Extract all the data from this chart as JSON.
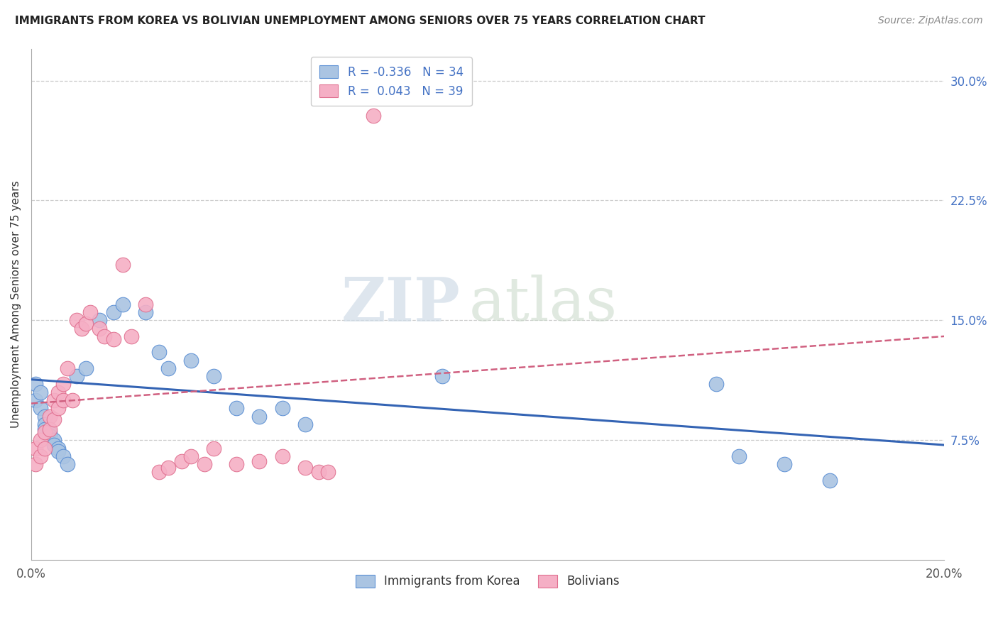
{
  "title": "IMMIGRANTS FROM KOREA VS BOLIVIAN UNEMPLOYMENT AMONG SENIORS OVER 75 YEARS CORRELATION CHART",
  "source": "Source: ZipAtlas.com",
  "ylabel": "Unemployment Among Seniors over 75 years",
  "watermark_zip": "ZIP",
  "watermark_atlas": "atlas",
  "xlim": [
    0.0,
    0.2
  ],
  "ylim": [
    0.0,
    0.32
  ],
  "xticks": [
    0.0,
    0.05,
    0.1,
    0.15,
    0.2
  ],
  "xtick_labels": [
    "0.0%",
    "",
    "",
    "",
    "20.0%"
  ],
  "yticks_right": [
    0.075,
    0.15,
    0.225,
    0.3
  ],
  "ytick_labels_right": [
    "7.5%",
    "15.0%",
    "22.5%",
    "30.0%"
  ],
  "legend_blue_r": "-0.336",
  "legend_blue_n": "34",
  "legend_pink_r": "0.043",
  "legend_pink_n": "39",
  "blue_scatter_color": "#aac4e2",
  "pink_scatter_color": "#f5afc5",
  "blue_edge_color": "#5b8fd4",
  "pink_edge_color": "#e07090",
  "blue_line_color": "#3464b4",
  "pink_line_color": "#d06080",
  "grid_color": "#cccccc",
  "title_color": "#222222",
  "source_color": "#888888",
  "korea_x": [
    0.001,
    0.001,
    0.002,
    0.002,
    0.003,
    0.003,
    0.003,
    0.004,
    0.004,
    0.005,
    0.005,
    0.006,
    0.006,
    0.007,
    0.008,
    0.01,
    0.012,
    0.015,
    0.018,
    0.02,
    0.025,
    0.028,
    0.03,
    0.035,
    0.04,
    0.045,
    0.05,
    0.055,
    0.06,
    0.09,
    0.15,
    0.155,
    0.165,
    0.175
  ],
  "korea_y": [
    0.11,
    0.1,
    0.105,
    0.095,
    0.09,
    0.085,
    0.082,
    0.08,
    0.078,
    0.075,
    0.072,
    0.07,
    0.068,
    0.065,
    0.06,
    0.115,
    0.12,
    0.15,
    0.155,
    0.16,
    0.155,
    0.13,
    0.12,
    0.125,
    0.115,
    0.095,
    0.09,
    0.095,
    0.085,
    0.115,
    0.11,
    0.065,
    0.06,
    0.05
  ],
  "bolivia_x": [
    0.001,
    0.001,
    0.002,
    0.002,
    0.003,
    0.003,
    0.004,
    0.004,
    0.005,
    0.005,
    0.006,
    0.006,
    0.007,
    0.007,
    0.008,
    0.009,
    0.01,
    0.011,
    0.012,
    0.013,
    0.015,
    0.016,
    0.018,
    0.02,
    0.022,
    0.025,
    0.028,
    0.03,
    0.033,
    0.035,
    0.038,
    0.04,
    0.045,
    0.05,
    0.055,
    0.06,
    0.063,
    0.065,
    0.075
  ],
  "bolivia_y": [
    0.07,
    0.06,
    0.075,
    0.065,
    0.08,
    0.07,
    0.09,
    0.082,
    0.1,
    0.088,
    0.105,
    0.095,
    0.11,
    0.1,
    0.12,
    0.1,
    0.15,
    0.145,
    0.148,
    0.155,
    0.145,
    0.14,
    0.138,
    0.185,
    0.14,
    0.16,
    0.055,
    0.058,
    0.062,
    0.065,
    0.06,
    0.07,
    0.06,
    0.062,
    0.065,
    0.058,
    0.055,
    0.055,
    0.278
  ],
  "blue_line_x0": 0.0,
  "blue_line_y0": 0.113,
  "blue_line_x1": 0.2,
  "blue_line_y1": 0.072,
  "pink_line_x0": 0.0,
  "pink_line_y0": 0.098,
  "pink_line_x1": 0.2,
  "pink_line_y1": 0.14
}
